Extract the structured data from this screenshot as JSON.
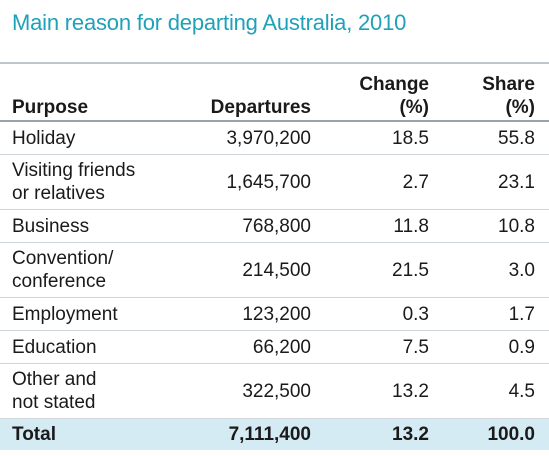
{
  "chart_data": {
    "type": "table",
    "title": "Main reason for departing Australia, 2010",
    "columns": {
      "purpose": "Purpose",
      "departures": "Departures",
      "change": "Change (%)",
      "share": "Share (%)"
    },
    "header": {
      "change_line1": "Change",
      "change_line2": "(%)",
      "share_line1": "Share",
      "share_line2": "(%)"
    },
    "rows": [
      {
        "purpose": "Holiday",
        "departures": "3,970,200",
        "change": "18.5",
        "share": "55.8"
      },
      {
        "purpose_line1": "Visiting friends",
        "purpose_line2": "or relatives",
        "departures": "1,645,700",
        "change": "2.7",
        "share": "23.1"
      },
      {
        "purpose": "Business",
        "departures": "768,800",
        "change": "11.8",
        "share": "10.8"
      },
      {
        "purpose_line1": "Convention/",
        "purpose_line2": "conference",
        "departures": "214,500",
        "change": "21.5",
        "share": "3.0"
      },
      {
        "purpose": "Employment",
        "departures": "123,200",
        "change": "0.3",
        "share": "1.7"
      },
      {
        "purpose": "Education",
        "departures": "66,200",
        "change": "7.5",
        "share": "0.9"
      },
      {
        "purpose_line1": "Other and",
        "purpose_line2": "not stated",
        "departures": "322,500",
        "change": "13.2",
        "share": "4.5"
      }
    ],
    "total": {
      "purpose": "Total",
      "departures": "7,111,400",
      "change": "13.2",
      "share": "100.0"
    }
  },
  "colors": {
    "title": "#1fa1b8",
    "total_row_bg": "#d4ebf3",
    "rules": "#bfc6cb"
  }
}
